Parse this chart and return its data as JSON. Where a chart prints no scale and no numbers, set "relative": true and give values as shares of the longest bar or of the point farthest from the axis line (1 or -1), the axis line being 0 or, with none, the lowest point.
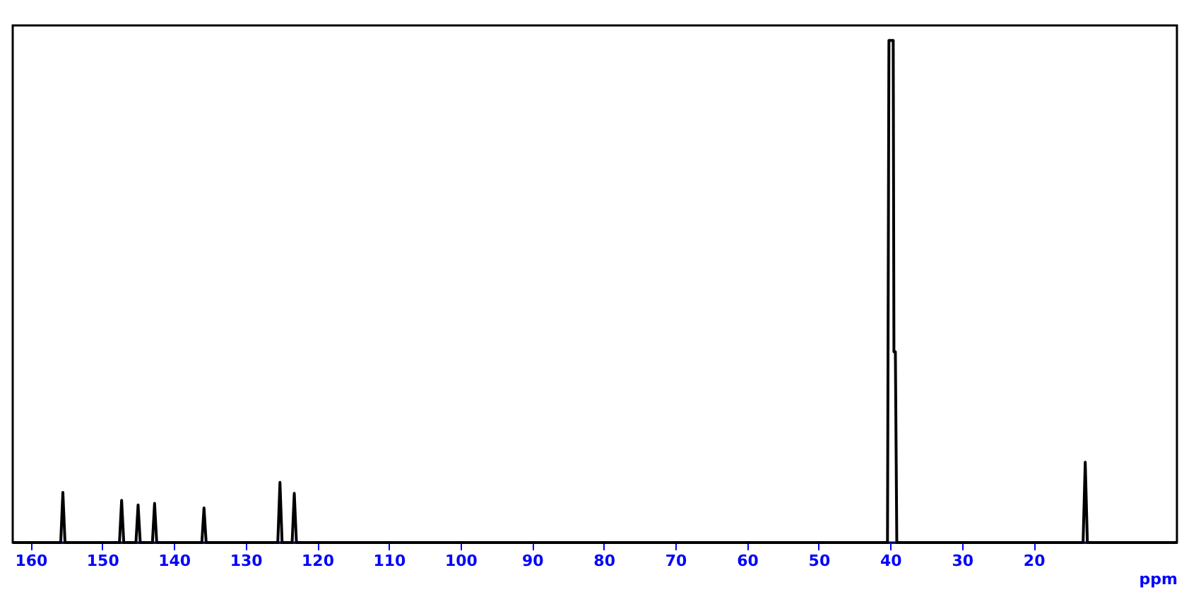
{
  "chart_data": {
    "type": "line",
    "relative": true,
    "xlabel": "ppm",
    "xlim": [
      162.5,
      0
    ],
    "xticks": [
      160,
      150,
      140,
      130,
      120,
      110,
      100,
      90,
      80,
      70,
      60,
      50,
      40,
      30,
      20
    ],
    "x": [
      162.5,
      155.8,
      155.5,
      155.2,
      147.6,
      147.3,
      147.0,
      145.3,
      145.0,
      144.7,
      143.0,
      142.7,
      142.4,
      136.1,
      135.8,
      135.5,
      125.5,
      125.2,
      124.9,
      123.5,
      123.2,
      122.9,
      40.4,
      40.2,
      39.6,
      39.5,
      39.3,
      39.1,
      13.1,
      12.8,
      12.5,
      0
    ],
    "series": [
      {
        "color": "#000000",
        "values": [
          0,
          0,
          0.1,
          0,
          0,
          0.084,
          0,
          0,
          0.075,
          0,
          0,
          0.078,
          0,
          0,
          0.069,
          0,
          0,
          0.12,
          0,
          0,
          0.098,
          0,
          0,
          1.0,
          1.0,
          0.38,
          0.38,
          0,
          0,
          0.16,
          0,
          0
        ]
      }
    ]
  }
}
